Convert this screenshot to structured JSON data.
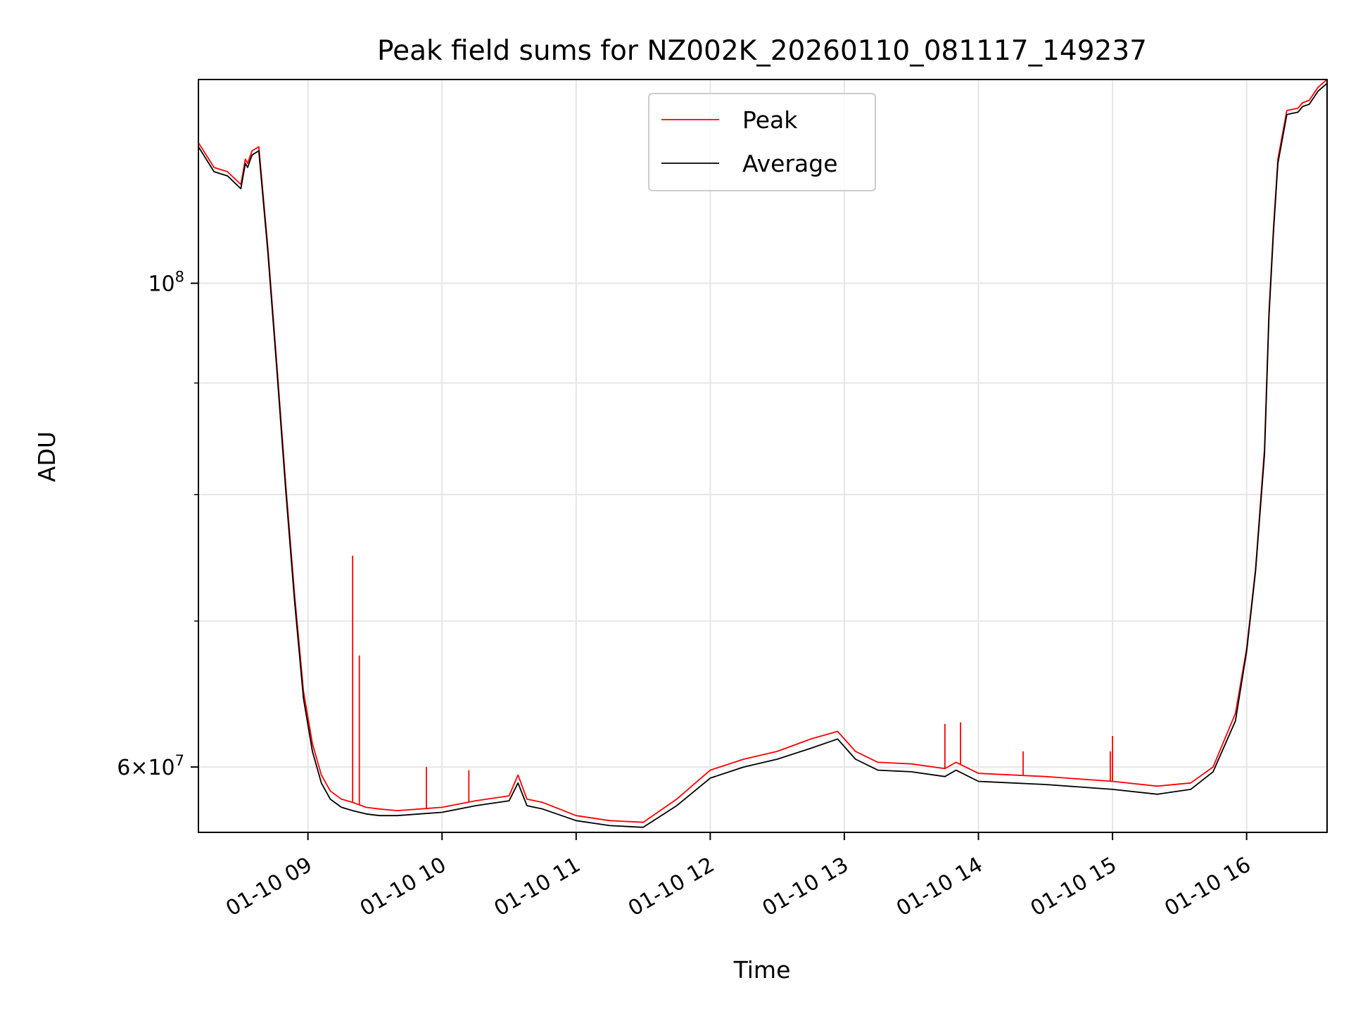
{
  "chart_data": {
    "type": "line",
    "title": "Peak field sums for NZ002K_20260110_081117_149237",
    "xlabel": "Time",
    "ylabel": "ADU",
    "yscale": "log",
    "grid": true,
    "legend_position": "top-center",
    "x_range": [
      "2026-01-10 08:11",
      "2026-01-10 16:36"
    ],
    "ylim": [
      56000000,
      124000000
    ],
    "x_ticks": [
      {
        "value": "2026-01-10 09:00",
        "label": "01-10 09"
      },
      {
        "value": "2026-01-10 10:00",
        "label": "01-10 10"
      },
      {
        "value": "2026-01-10 11:00",
        "label": "01-10 11"
      },
      {
        "value": "2026-01-10 12:00",
        "label": "01-10 12"
      },
      {
        "value": "2026-01-10 13:00",
        "label": "01-10 13"
      },
      {
        "value": "2026-01-10 14:00",
        "label": "01-10 14"
      },
      {
        "value": "2026-01-10 15:00",
        "label": "01-10 15"
      },
      {
        "value": "2026-01-10 16:00",
        "label": "01-10 16"
      }
    ],
    "y_major_ticks": [
      {
        "value": 60000000,
        "base": "6",
        "exp": "7"
      },
      {
        "value": 100000000,
        "base": "",
        "exp": "8"
      }
    ],
    "y_minor_ticks": [
      70000000,
      80000000,
      90000000
    ],
    "series": [
      {
        "name": "Peak",
        "color": "#ff0000",
        "x": [
          "2026-01-10 08:11",
          "2026-01-10 08:18",
          "2026-01-10 08:24",
          "2026-01-10 08:30",
          "2026-01-10 08:32",
          "2026-01-10 08:33",
          "2026-01-10 08:35",
          "2026-01-10 08:38",
          "2026-01-10 08:42",
          "2026-01-10 08:46",
          "2026-01-10 08:50",
          "2026-01-10 08:54",
          "2026-01-10 08:58",
          "2026-01-10 09:02",
          "2026-01-10 09:06",
          "2026-01-10 09:10",
          "2026-01-10 09:15",
          "2026-01-10 09:20",
          "2026-01-10 09:26",
          "2026-01-10 09:32",
          "2026-01-10 09:40",
          "2026-01-10 09:50",
          "2026-01-10 10:00",
          "2026-01-10 10:15",
          "2026-01-10 10:30",
          "2026-01-10 10:34",
          "2026-01-10 10:38",
          "2026-01-10 10:45",
          "2026-01-10 11:00",
          "2026-01-10 11:15",
          "2026-01-10 11:30",
          "2026-01-10 11:45",
          "2026-01-10 12:00",
          "2026-01-10 12:15",
          "2026-01-10 12:30",
          "2026-01-10 12:45",
          "2026-01-10 12:57",
          "2026-01-10 13:05",
          "2026-01-10 13:15",
          "2026-01-10 13:30",
          "2026-01-10 13:45",
          "2026-01-10 13:50",
          "2026-01-10 14:00",
          "2026-01-10 14:30",
          "2026-01-10 15:00",
          "2026-01-10 15:20",
          "2026-01-10 15:35",
          "2026-01-10 15:45",
          "2026-01-10 15:55",
          "2026-01-10 16:00",
          "2026-01-10 16:04",
          "2026-01-10 16:08",
          "2026-01-10 16:10",
          "2026-01-10 16:12",
          "2026-01-10 16:14",
          "2026-01-10 16:18",
          "2026-01-10 16:23",
          "2026-01-10 16:25",
          "2026-01-10 16:28",
          "2026-01-10 16:32",
          "2026-01-10 16:36"
        ],
        "y": [
          116000000,
          113000000,
          112500000,
          111000000,
          114000000,
          113500000,
          115000000,
          115500000,
          104000000,
          92000000,
          81000000,
          72000000,
          65000000,
          61500000,
          59500000,
          58500000,
          58000000,
          57800000,
          57500000,
          57400000,
          57300000,
          57400000,
          57500000,
          57900000,
          58200000,
          59500000,
          58000000,
          57800000,
          57000000,
          56700000,
          56600000,
          58000000,
          59800000,
          60500000,
          61000000,
          61800000,
          62300000,
          61000000,
          60300000,
          60200000,
          59900000,
          60300000,
          59600000,
          59400000,
          59100000,
          58800000,
          59000000,
          60000000,
          63500000,
          68000000,
          74000000,
          84000000,
          97000000,
          106000000,
          114000000,
          120000000,
          120300000,
          121000000,
          121300000,
          123000000,
          124000000
        ],
        "spikes": [
          {
            "x": "2026-01-10 09:20",
            "y": 75000000
          },
          {
            "x": "2026-01-10 09:23",
            "y": 67500000
          },
          {
            "x": "2026-01-10 13:45",
            "y": 62800000
          },
          {
            "x": "2026-01-10 13:52",
            "y": 62900000
          },
          {
            "x": "2026-01-10 14:20",
            "y": 61000000
          },
          {
            "x": "2026-01-10 15:00",
            "y": 62000000
          },
          {
            "x": "2026-01-10 14:59",
            "y": 61000000
          },
          {
            "x": "2026-01-10 10:12",
            "y": 59800000
          },
          {
            "x": "2026-01-10 09:53",
            "y": 60000000
          }
        ]
      },
      {
        "name": "Average",
        "color": "#000000",
        "x": [
          "2026-01-10 08:11",
          "2026-01-10 08:18",
          "2026-01-10 08:24",
          "2026-01-10 08:30",
          "2026-01-10 08:32",
          "2026-01-10 08:33",
          "2026-01-10 08:35",
          "2026-01-10 08:38",
          "2026-01-10 08:42",
          "2026-01-10 08:46",
          "2026-01-10 08:50",
          "2026-01-10 08:54",
          "2026-01-10 08:58",
          "2026-01-10 09:02",
          "2026-01-10 09:06",
          "2026-01-10 09:10",
          "2026-01-10 09:15",
          "2026-01-10 09:20",
          "2026-01-10 09:26",
          "2026-01-10 09:32",
          "2026-01-10 09:40",
          "2026-01-10 09:50",
          "2026-01-10 10:00",
          "2026-01-10 10:15",
          "2026-01-10 10:30",
          "2026-01-10 10:34",
          "2026-01-10 10:38",
          "2026-01-10 10:45",
          "2026-01-10 11:00",
          "2026-01-10 11:15",
          "2026-01-10 11:30",
          "2026-01-10 11:45",
          "2026-01-10 12:00",
          "2026-01-10 12:15",
          "2026-01-10 12:30",
          "2026-01-10 12:45",
          "2026-01-10 12:57",
          "2026-01-10 13:05",
          "2026-01-10 13:15",
          "2026-01-10 13:30",
          "2026-01-10 13:45",
          "2026-01-10 13:50",
          "2026-01-10 14:00",
          "2026-01-10 14:30",
          "2026-01-10 15:00",
          "2026-01-10 15:20",
          "2026-01-10 15:35",
          "2026-01-10 15:45",
          "2026-01-10 15:55",
          "2026-01-10 16:00",
          "2026-01-10 16:04",
          "2026-01-10 16:08",
          "2026-01-10 16:10",
          "2026-01-10 16:12",
          "2026-01-10 16:14",
          "2026-01-10 16:18",
          "2026-01-10 16:23",
          "2026-01-10 16:25",
          "2026-01-10 16:28",
          "2026-01-10 16:32",
          "2026-01-10 16:36"
        ],
        "y": [
          115500000,
          112500000,
          112000000,
          110500000,
          113500000,
          113000000,
          114500000,
          115000000,
          103500000,
          91500000,
          80500000,
          71500000,
          64500000,
          61000000,
          59000000,
          58000000,
          57500000,
          57300000,
          57100000,
          57000000,
          57000000,
          57100000,
          57200000,
          57600000,
          57900000,
          59000000,
          57600000,
          57400000,
          56700000,
          56400000,
          56300000,
          57600000,
          59300000,
          60000000,
          60500000,
          61200000,
          61800000,
          60500000,
          59800000,
          59700000,
          59400000,
          59800000,
          59100000,
          58900000,
          58600000,
          58300000,
          58600000,
          59700000,
          63000000,
          67800000,
          73800000,
          83500000,
          96500000,
          105500000,
          113500000,
          119500000,
          119800000,
          120500000,
          120800000,
          122500000,
          123500000
        ]
      }
    ]
  }
}
